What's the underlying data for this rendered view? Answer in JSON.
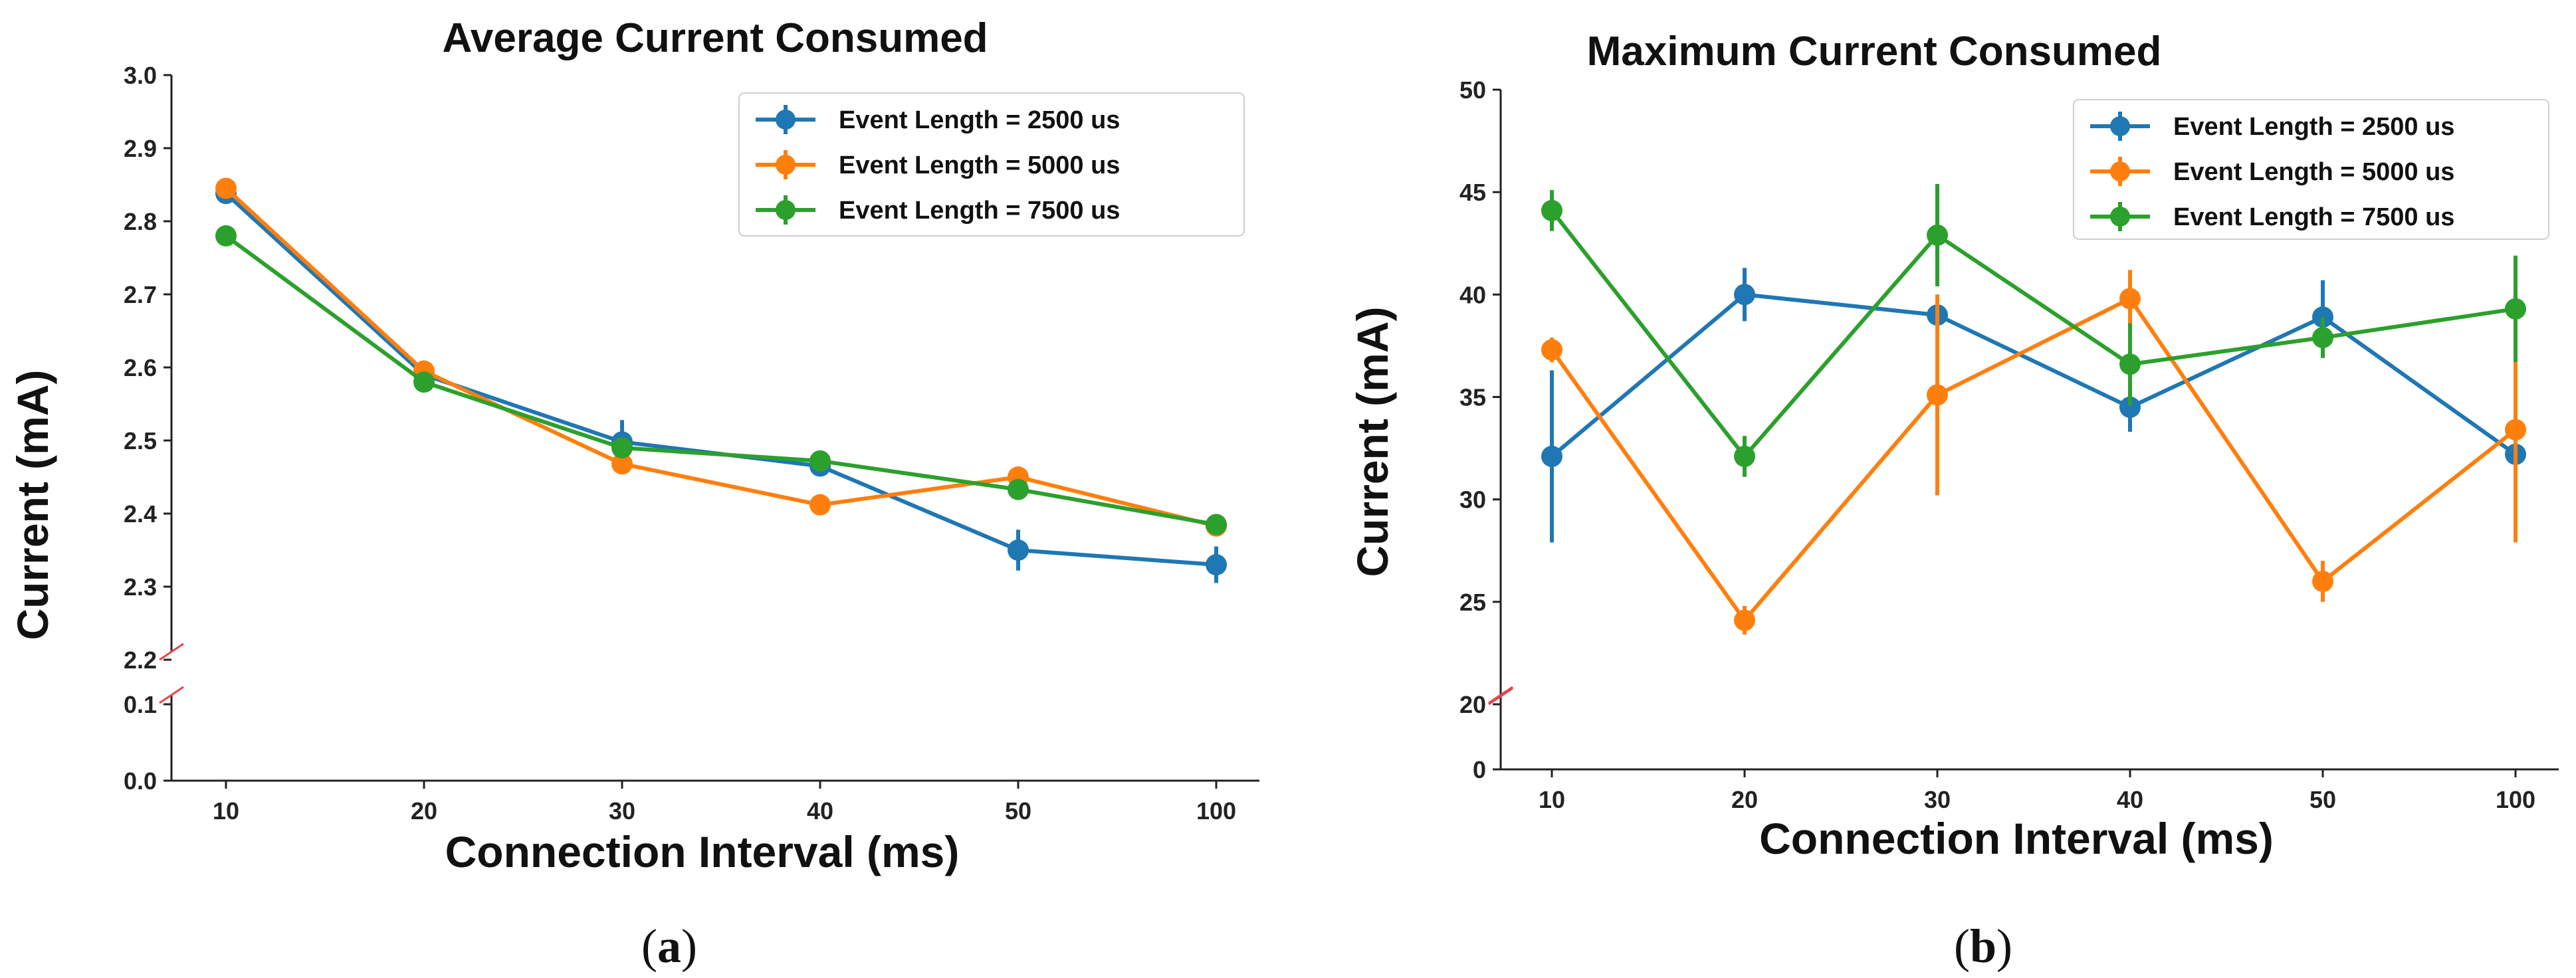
{
  "colors": {
    "s2500": "#1f77b4",
    "s5000": "#ff7f0e",
    "s7500": "#2ca02c",
    "axis": "#222222",
    "break": "#e8434a"
  },
  "chart_data": [
    {
      "type": "line",
      "title": "Average Current Consumed",
      "xlabel": "Connection Interval (ms)",
      "ylabel": "Current (mA)",
      "categories": [
        "10",
        "20",
        "30",
        "40",
        "50",
        "100"
      ],
      "y_ticks": [
        "0.0",
        "0.1",
        "2.2",
        "2.3",
        "2.4",
        "2.5",
        "2.6",
        "2.7",
        "2.8",
        "2.9",
        "3.0"
      ],
      "axis_break": [
        0.1,
        2.2
      ],
      "ylim": [
        0.0,
        3.0
      ],
      "legend_position": "top-right",
      "caption": "a",
      "series": [
        {
          "name": "Event Length = 2500 us",
          "color_key": "s2500",
          "values": [
            2.838,
            2.59,
            2.498,
            2.465,
            2.35,
            2.33
          ],
          "errors": [
            0.008,
            0.006,
            0.03,
            0.01,
            0.028,
            0.025
          ]
        },
        {
          "name": "Event Length = 5000 us",
          "color_key": "s5000",
          "values": [
            2.845,
            2.595,
            2.468,
            2.412,
            2.45,
            2.383
          ],
          "errors": [
            0.008,
            0.006,
            0.008,
            0.006,
            0.008,
            0.008
          ]
        },
        {
          "name": "Event Length = 7500 us",
          "color_key": "s7500",
          "values": [
            2.78,
            2.58,
            2.49,
            2.472,
            2.433,
            2.385
          ],
          "errors": [
            0.006,
            0.006,
            0.012,
            0.006,
            0.008,
            0.006
          ]
        }
      ]
    },
    {
      "type": "line",
      "title": "Maximum Current Consumed",
      "xlabel": "Connection Interval (ms)",
      "ylabel": "Current (mA)",
      "categories": [
        "10",
        "20",
        "30",
        "40",
        "50",
        "100"
      ],
      "y_ticks": [
        "0",
        "20",
        "25",
        "30",
        "35",
        "40",
        "45",
        "50"
      ],
      "axis_break": [
        0,
        20
      ],
      "ylim": [
        0,
        50
      ],
      "legend_position": "top-right",
      "caption": "b",
      "series": [
        {
          "name": "Event Length = 2500 us",
          "color_key": "s2500",
          "values": [
            32.1,
            40.0,
            39.0,
            34.5,
            38.9,
            32.2
          ],
          "errors": [
            4.2,
            1.3,
            1.0,
            1.2,
            1.8,
            0.8
          ]
        },
        {
          "name": "Event Length = 5000 us",
          "color_key": "s5000",
          "values": [
            37.3,
            24.1,
            35.1,
            39.8,
            26.0,
            33.4
          ],
          "errors": [
            0.6,
            0.7,
            4.9,
            1.4,
            1.0,
            5.5
          ]
        },
        {
          "name": "Event Length = 7500 us",
          "color_key": "s7500",
          "values": [
            44.1,
            32.1,
            42.9,
            36.6,
            37.9,
            39.3
          ],
          "errors": [
            1.0,
            1.0,
            2.5,
            2.0,
            1.0,
            2.6
          ]
        }
      ]
    }
  ]
}
